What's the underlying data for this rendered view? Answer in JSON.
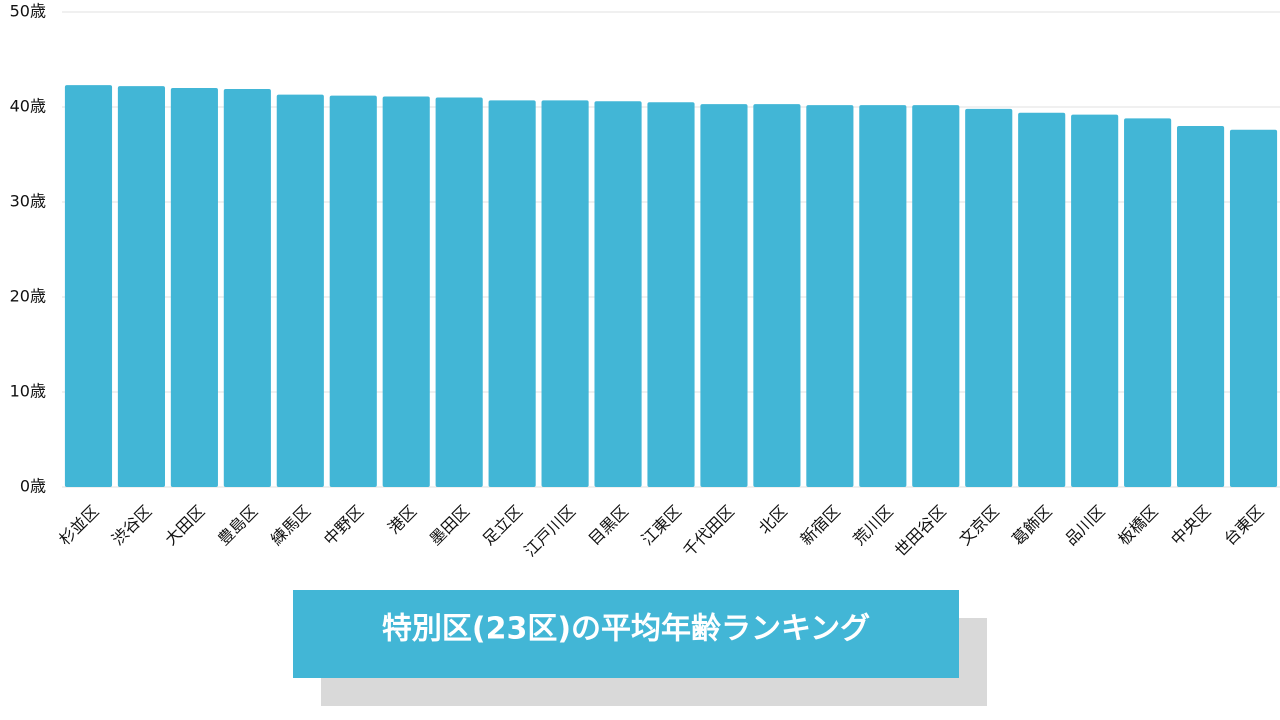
{
  "chart_data": {
    "type": "bar",
    "title": "特別区(23区)の平均年齢ランキング",
    "categories": [
      "杉並区",
      "渋谷区",
      "大田区",
      "豊島区",
      "練馬区",
      "中野区",
      "港区",
      "墨田区",
      "足立区",
      "江戸川区",
      "目黒区",
      "江東区",
      "千代田区",
      "北区",
      "新宿区",
      "荒川区",
      "世田谷区",
      "文京区",
      "葛飾区",
      "品川区",
      "板橋区",
      "中央区",
      "台東区"
    ],
    "values": [
      42.3,
      42.2,
      42.0,
      41.9,
      41.3,
      41.2,
      41.1,
      41.0,
      40.7,
      40.7,
      40.6,
      40.5,
      40.3,
      40.3,
      40.2,
      40.2,
      40.2,
      39.8,
      39.4,
      39.2,
      38.8,
      38.0,
      37.6
    ],
    "color": "#42b6d6",
    "ylim": [
      0,
      50
    ],
    "yticks": [
      {
        "value": 0,
        "label": "0歳"
      },
      {
        "value": 10,
        "label": "10歳"
      },
      {
        "value": 20,
        "label": "20歳"
      },
      {
        "value": 30,
        "label": "30歳"
      },
      {
        "value": 40,
        "label": "40歳"
      },
      {
        "value": 50,
        "label": "50歳"
      }
    ],
    "grid": true
  }
}
